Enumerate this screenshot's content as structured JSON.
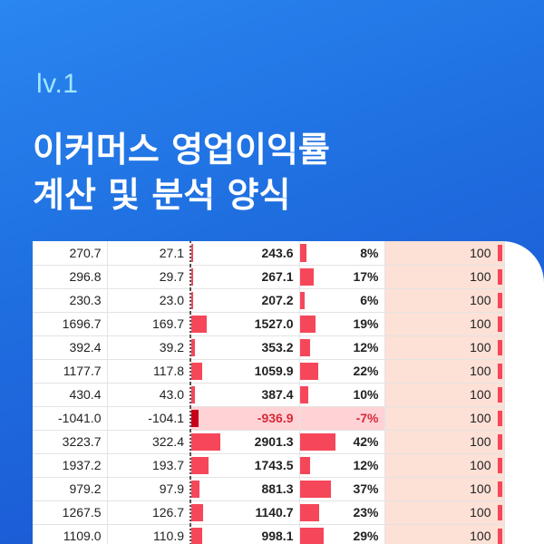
{
  "header": {
    "level": "lv.1",
    "title_line1": "이커머스 영업이익률",
    "title_line2": "계산 및 분석 양식"
  },
  "table": {
    "rows": [
      {
        "a": "270.7",
        "b": "27.1",
        "c": "243.6",
        "d": "8%",
        "e": "100",
        "c_frac": 0.015,
        "d_frac": 0.08
      },
      {
        "a": "296.8",
        "b": "29.7",
        "c": "267.1",
        "d": "17%",
        "e": "100",
        "c_frac": 0.015,
        "d_frac": 0.17
      },
      {
        "a": "230.3",
        "b": "23.0",
        "c": "207.2",
        "d": "6%",
        "e": "100",
        "c_frac": 0.015,
        "d_frac": 0.06
      },
      {
        "a": "1696.7",
        "b": "169.7",
        "c": "1527.0",
        "d": "19%",
        "e": "100",
        "c_frac": 0.14,
        "d_frac": 0.19
      },
      {
        "a": "392.4",
        "b": "39.2",
        "c": "353.2",
        "d": "12%",
        "e": "100",
        "c_frac": 0.03,
        "d_frac": 0.12
      },
      {
        "a": "1177.7",
        "b": "117.8",
        "c": "1059.9",
        "d": "22%",
        "e": "100",
        "c_frac": 0.1,
        "d_frac": 0.22
      },
      {
        "a": "430.4",
        "b": "43.0",
        "c": "387.4",
        "d": "10%",
        "e": "100",
        "c_frac": 0.035,
        "d_frac": 0.1
      },
      {
        "a": "-1041.0",
        "b": "-104.1",
        "c": "-936.9",
        "d": "-7%",
        "e": "100",
        "c_frac": 0.07,
        "d_frac": 0.0,
        "negative": true
      },
      {
        "a": "3223.7",
        "b": "322.4",
        "c": "2901.3",
        "d": "42%",
        "e": "100",
        "c_frac": 0.27,
        "d_frac": 0.42
      },
      {
        "a": "1937.2",
        "b": "193.7",
        "c": "1743.5",
        "d": "12%",
        "e": "100",
        "c_frac": 0.16,
        "d_frac": 0.12
      },
      {
        "a": "979.2",
        "b": "97.9",
        "c": "881.3",
        "d": "37%",
        "e": "100",
        "c_frac": 0.08,
        "d_frac": 0.37
      },
      {
        "a": "1267.5",
        "b": "126.7",
        "c": "1140.7",
        "d": "23%",
        "e": "100",
        "c_frac": 0.11,
        "d_frac": 0.23
      },
      {
        "a": "1109.0",
        "b": "110.9",
        "c": "998.1",
        "d": "29%",
        "e": "100",
        "c_frac": 0.1,
        "d_frac": 0.29
      }
    ]
  }
}
